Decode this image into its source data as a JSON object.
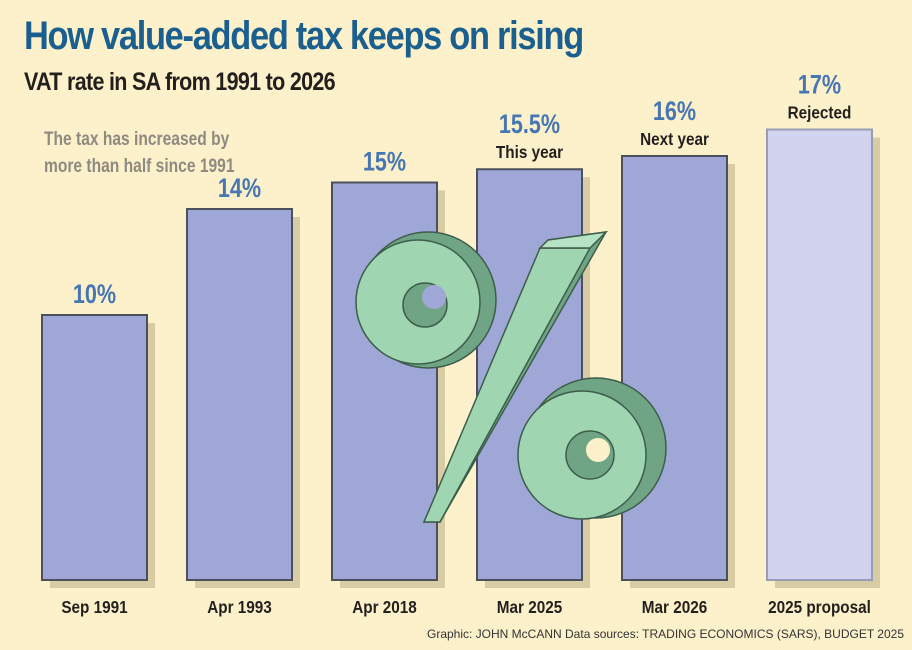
{
  "chart_data": {
    "type": "bar",
    "title": "How value-added tax keeps on rising",
    "subtitle": "VAT rate in SA from 1991 to 2026",
    "categories": [
      "Sep 1991",
      "Apr 1993",
      "Apr 2018",
      "Mar 2025",
      "Mar 2026",
      "2025 proposal"
    ],
    "values": [
      10,
      14,
      15,
      15.5,
      16,
      17
    ],
    "data_labels": [
      "10%",
      "14%",
      "15%",
      "15.5%",
      "16%",
      "17%"
    ],
    "bar_notes": [
      "",
      "",
      "",
      "This year",
      "Next year",
      "Rejected"
    ],
    "xlabel": "",
    "ylabel": "",
    "ylim": [
      0,
      17
    ],
    "grid": false,
    "annotation": "The tax has increased by more than half since 1991",
    "colors": {
      "bar": "#9fa7d6",
      "proposal_bar": "#d2d4ef",
      "value_label": "#4676b3",
      "title": "#1a5f8e",
      "background": "#fdf1cb",
      "percent_icon": "#9fd6b1"
    }
  },
  "footer": "Graphic: JOHN McCANN  Data sources: TRADING ECONOMICS (SARS), BUDGET 2025"
}
